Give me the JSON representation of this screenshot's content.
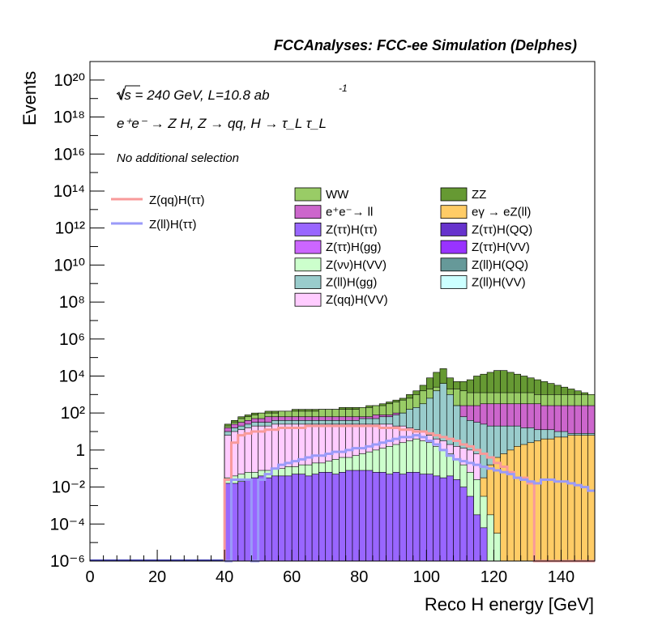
{
  "header": {
    "title": "FCCAnalyses: FCC-ee Simulation (Delphes)",
    "energy_line": "√s = 240 GeV, L=10.8 ab",
    "energy_exp": "-1",
    "process_line": "e⁺e⁻ → Z H, Z → qq, H → τ_L τ_L",
    "selection": "No additional selection"
  },
  "axes": {
    "xlabel": "Reco H energy [GeV]",
    "ylabel": "Events",
    "x_ticks": [
      "0",
      "20",
      "40",
      "60",
      "80",
      "100",
      "120",
      "140"
    ],
    "y_tick_labels": [
      "10⁻⁶",
      "10⁻⁴",
      "10⁻²",
      "1",
      "10²",
      "10⁴",
      "10⁶",
      "10⁸",
      "10¹⁰",
      "10¹²",
      "10¹⁴",
      "10¹⁶",
      "10¹⁸",
      "10²⁰"
    ]
  },
  "legend_signal": [
    {
      "label": "Z(qq)H(ττ)",
      "color": "#f89a9a"
    },
    {
      "label": "Z(ll)H(ττ)",
      "color": "#9a9af8"
    }
  ],
  "legend_bkg": [
    {
      "label": "WW",
      "color": "#99cc66"
    },
    {
      "label": "ZZ",
      "color": "#669933"
    },
    {
      "label": "e⁺e⁻→ ll",
      "color": "#cc66cc"
    },
    {
      "label": "eγ → eZ(ll)",
      "color": "#ffcc66"
    },
    {
      "label": "Z(ττ)H(ττ)",
      "color": "#9966ff"
    },
    {
      "label": "Z(ττ)H(QQ)",
      "color": "#6633cc"
    },
    {
      "label": "Z(ττ)H(gg)",
      "color": "#cc66ff"
    },
    {
      "label": "Z(ττ)H(VV)",
      "color": "#9933ff"
    },
    {
      "label": "Z(νν)H(VV)",
      "color": "#ccffcc"
    },
    {
      "label": "Z(ll)H(QQ)",
      "color": "#669999"
    },
    {
      "label": "Z(ll)H(gg)",
      "color": "#99cccc"
    },
    {
      "label": "Z(ll)H(VV)",
      "color": "#ccffff"
    },
    {
      "label": "Z(qq)H(VV)",
      "color": "#ffccff"
    }
  ],
  "chart_data": {
    "type": "area",
    "title": "FCCAnalyses: FCC-ee Simulation (Delphes)",
    "xlabel": "Reco H energy [GeV]",
    "ylabel": "Events",
    "xlim": [
      0,
      150
    ],
    "ylim_log10": [
      -6,
      21
    ],
    "y_scale": "log",
    "bin_width_GeV": 2,
    "x_bin_edges_start": 40,
    "stacked_background_log10": {
      "x": [
        40,
        42,
        44,
        46,
        48,
        50,
        52,
        54,
        56,
        58,
        60,
        62,
        64,
        66,
        68,
        70,
        72,
        74,
        76,
        78,
        80,
        82,
        84,
        86,
        88,
        90,
        92,
        94,
        96,
        98,
        100,
        102,
        104,
        106,
        108,
        110,
        112,
        114,
        116,
        118,
        120,
        122,
        124,
        126,
        128,
        130,
        132,
        134,
        136,
        138,
        140,
        142,
        144,
        146,
        148
      ],
      "series": [
        {
          "name": "Z(ττ)H(ττ)",
          "color": "#9966ff",
          "log10": [
            -1.8,
            -1.8,
            -1.7,
            -1.6,
            -1.5,
            -1.4,
            -1.5,
            -1.4,
            -1.4,
            -1.4,
            -1.3,
            -1.3,
            -1.4,
            -1.3,
            -1.2,
            -1.2,
            -1.3,
            -1.2,
            -1.1,
            -1.1,
            -1.1,
            -1.1,
            -1.2,
            -1.2,
            -1.3,
            -1.2,
            -1.3,
            -1.2,
            -1.2,
            -1.3,
            -1.3,
            -1.4,
            -1.5,
            -1.4,
            -1.6,
            -2,
            -2.5,
            -3.5,
            -4.2,
            -6,
            -6,
            -6,
            -6,
            -6,
            -6,
            -6,
            -6,
            -6,
            -6,
            -6,
            -6,
            -6,
            -6,
            -6,
            -6
          ]
        },
        {
          "name": "Z(νν)H(VV)",
          "color": "#ccffcc",
          "log10": [
            -1.5,
            -1.4,
            -1.3,
            -1.2,
            -1.2,
            -1.1,
            -1.1,
            -1.0,
            -1.0,
            -0.9,
            -0.9,
            -0.8,
            -0.8,
            -0.7,
            -0.7,
            -0.6,
            -0.5,
            -0.4,
            -0.4,
            -0.3,
            -0.2,
            -0.1,
            0.0,
            0.1,
            0.2,
            0.3,
            0.4,
            0.5,
            0.6,
            0.5,
            0.4,
            0.2,
            0.0,
            -0.2,
            -0.5,
            -0.8,
            -1.2,
            -1.6,
            -2.5,
            -3.5,
            -4.5,
            -6,
            -6,
            -6,
            -6,
            -6,
            -6,
            -6,
            -6,
            -6,
            -6,
            -6,
            -6,
            -6,
            -6
          ]
        },
        {
          "name": "eγ → eZ(ll)",
          "color": "#ffcc66",
          "log10": [
            -6,
            -6,
            -6,
            -6,
            -6,
            -6,
            -6,
            -6,
            -6,
            -6,
            -6,
            -6,
            -6,
            -6,
            -6,
            -6,
            -6,
            -6,
            -6,
            -6,
            -6,
            -6,
            -6,
            -6,
            -6,
            -6,
            -6,
            -6,
            -6,
            -6,
            -6,
            -6,
            -6,
            -6,
            -6,
            -6,
            -4,
            -2.5,
            -1.5,
            -0.8,
            -0.4,
            -0.2,
            0.0,
            0.2,
            0.3,
            0.4,
            0.5,
            0.6,
            0.6,
            0.7,
            0.7,
            0.8,
            0.8,
            0.8,
            0.8
          ]
        },
        {
          "name": "Z(qq)H(VV)",
          "color": "#ffccff",
          "log10": [
            0.8,
            1.0,
            1.1,
            1.2,
            1.3,
            1.3,
            1.3,
            1.4,
            1.4,
            1.4,
            1.4,
            1.4,
            1.4,
            1.4,
            1.4,
            1.4,
            1.4,
            1.4,
            1.4,
            1.4,
            1.4,
            1.4,
            1.4,
            1.4,
            1.4,
            1.3,
            1.3,
            1.2,
            1.1,
            1.0,
            0.8,
            0.6,
            0.5,
            0.3,
            0.2,
            0.1,
            0.0,
            -0.2,
            -6,
            -6,
            -6,
            -6,
            -6,
            -6,
            -6,
            -6,
            -6,
            -6,
            -6,
            -6,
            -6,
            -6,
            -6,
            -6,
            -6
          ]
        },
        {
          "name": "Z(ll)H(gg)",
          "color": "#99cccc",
          "log10": [
            1.0,
            1.2,
            1.3,
            1.4,
            1.5,
            1.5,
            1.5,
            1.6,
            1.6,
            1.6,
            1.6,
            1.6,
            1.6,
            1.6,
            1.6,
            1.6,
            1.6,
            1.6,
            1.6,
            1.6,
            1.7,
            1.7,
            1.7,
            1.8,
            1.8,
            1.9,
            2.0,
            2.2,
            2.3,
            2.5,
            2.8,
            3.2,
            3.6,
            3.0,
            2.4,
            1.8,
            1.6,
            1.5,
            1.4,
            1.3,
            1.3,
            1.3,
            1.3,
            1.3,
            1.2,
            1.2,
            1.1,
            1.1,
            1.1,
            1.0,
            1.0,
            0.9,
            0.9,
            0.9,
            0.9
          ]
        },
        {
          "name": "e⁺e⁻→ ll",
          "color": "#cc66cc",
          "log10": [
            1.2,
            1.4,
            1.5,
            1.6,
            1.7,
            1.7,
            1.8,
            1.8,
            1.8,
            1.8,
            1.8,
            1.8,
            1.8,
            1.8,
            1.8,
            1.8,
            1.8,
            1.8,
            1.8,
            1.8,
            1.8,
            1.8,
            1.9,
            1.9,
            1.9,
            2.0,
            2.0,
            2.1,
            2.2,
            2.3,
            2.3,
            2.4,
            2.4,
            2.4,
            2.4,
            2.4,
            2.4,
            2.4,
            2.5,
            2.5,
            2.5,
            2.5,
            2.5,
            2.5,
            2.5,
            2.5,
            2.5,
            2.4,
            2.4,
            2.4,
            2.4,
            2.4,
            2.4,
            2.4,
            2.4
          ]
        },
        {
          "name": "WW",
          "color": "#99cc66",
          "log10": [
            1.3,
            1.5,
            1.7,
            1.8,
            1.9,
            2.0,
            2.0,
            2.0,
            2.1,
            2.1,
            2.1,
            2.1,
            2.1,
            2.1,
            2.2,
            2.2,
            2.2,
            2.2,
            2.2,
            2.2,
            2.3,
            2.3,
            2.4,
            2.4,
            2.5,
            2.6,
            2.7,
            2.8,
            3.0,
            3.2,
            3.3,
            3.4,
            3.4,
            3.3,
            3.3,
            3.2,
            3.1,
            3.1,
            3.1,
            3.1,
            3.1,
            3.1,
            3.1,
            3.1,
            3.1,
            3.1,
            3.0,
            3.0,
            3.0,
            3.0,
            3.0,
            3.0,
            3.0,
            3.0,
            3.0
          ]
        },
        {
          "name": "ZZ",
          "color": "#669933",
          "log10": [
            1.4,
            1.6,
            1.8,
            1.9,
            2.0,
            2.0,
            2.1,
            2.1,
            2.1,
            2.1,
            2.2,
            2.2,
            2.2,
            2.2,
            2.2,
            2.2,
            2.2,
            2.3,
            2.3,
            2.3,
            2.3,
            2.4,
            2.4,
            2.5,
            2.6,
            2.7,
            2.8,
            3.0,
            3.2,
            3.5,
            3.9,
            4.2,
            4.4,
            3.9,
            3.7,
            3.7,
            3.8,
            4.0,
            4.1,
            4.2,
            4.3,
            4.3,
            4.2,
            4.1,
            4.0,
            3.9,
            3.8,
            3.7,
            3.6,
            3.5,
            3.4,
            3.3,
            3.2,
            3.1,
            3.0
          ]
        }
      ]
    },
    "signals_log10": [
      {
        "name": "Z(qq)H(ττ)",
        "color": "#f89a9a",
        "log10": [
          -1.6,
          0.4,
          0.8,
          0.9,
          1.0,
          1.0,
          1.1,
          1.1,
          1.2,
          1.2,
          1.2,
          1.2,
          1.3,
          1.3,
          1.3,
          1.3,
          1.3,
          1.3,
          1.3,
          1.3,
          1.3,
          1.3,
          1.3,
          1.2,
          1.2,
          1.2,
          1.1,
          1.1,
          1.0,
          1.0,
          0.9,
          0.8,
          0.7,
          0.6,
          0.5,
          0.3,
          0.2,
          0.0,
          -0.2,
          -0.4,
          -0.7,
          -0.9,
          -1.2,
          -1.5,
          -1.5,
          -1.8,
          -6,
          -6,
          -6,
          -6,
          -6,
          -6,
          -6,
          -6,
          -6
        ]
      },
      {
        "name": "Z(ll)H(ττ)",
        "color": "#9a9af8",
        "log10": [
          -6,
          -1.6,
          -1.6,
          -1.6,
          -6,
          -1.6,
          -1.3,
          -1.0,
          -0.8,
          -0.7,
          -0.6,
          -0.5,
          -0.4,
          -0.3,
          -0.3,
          -0.2,
          -0.1,
          -0.1,
          0.0,
          0.1,
          0.1,
          0.2,
          0.3,
          0.4,
          0.5,
          0.6,
          0.7,
          0.7,
          0.8,
          0.7,
          0.5,
          0.3,
          0.0,
          -0.3,
          -0.5,
          -0.6,
          -0.7,
          -0.8,
          -0.9,
          -1.0,
          -1.1,
          -1.2,
          -1.3,
          -1.5,
          -1.6,
          -1.7,
          -1.8,
          -1.6,
          -1.6,
          -1.7,
          -1.7,
          -1.8,
          -1.9,
          -2.0,
          -2.2
        ]
      }
    ]
  }
}
